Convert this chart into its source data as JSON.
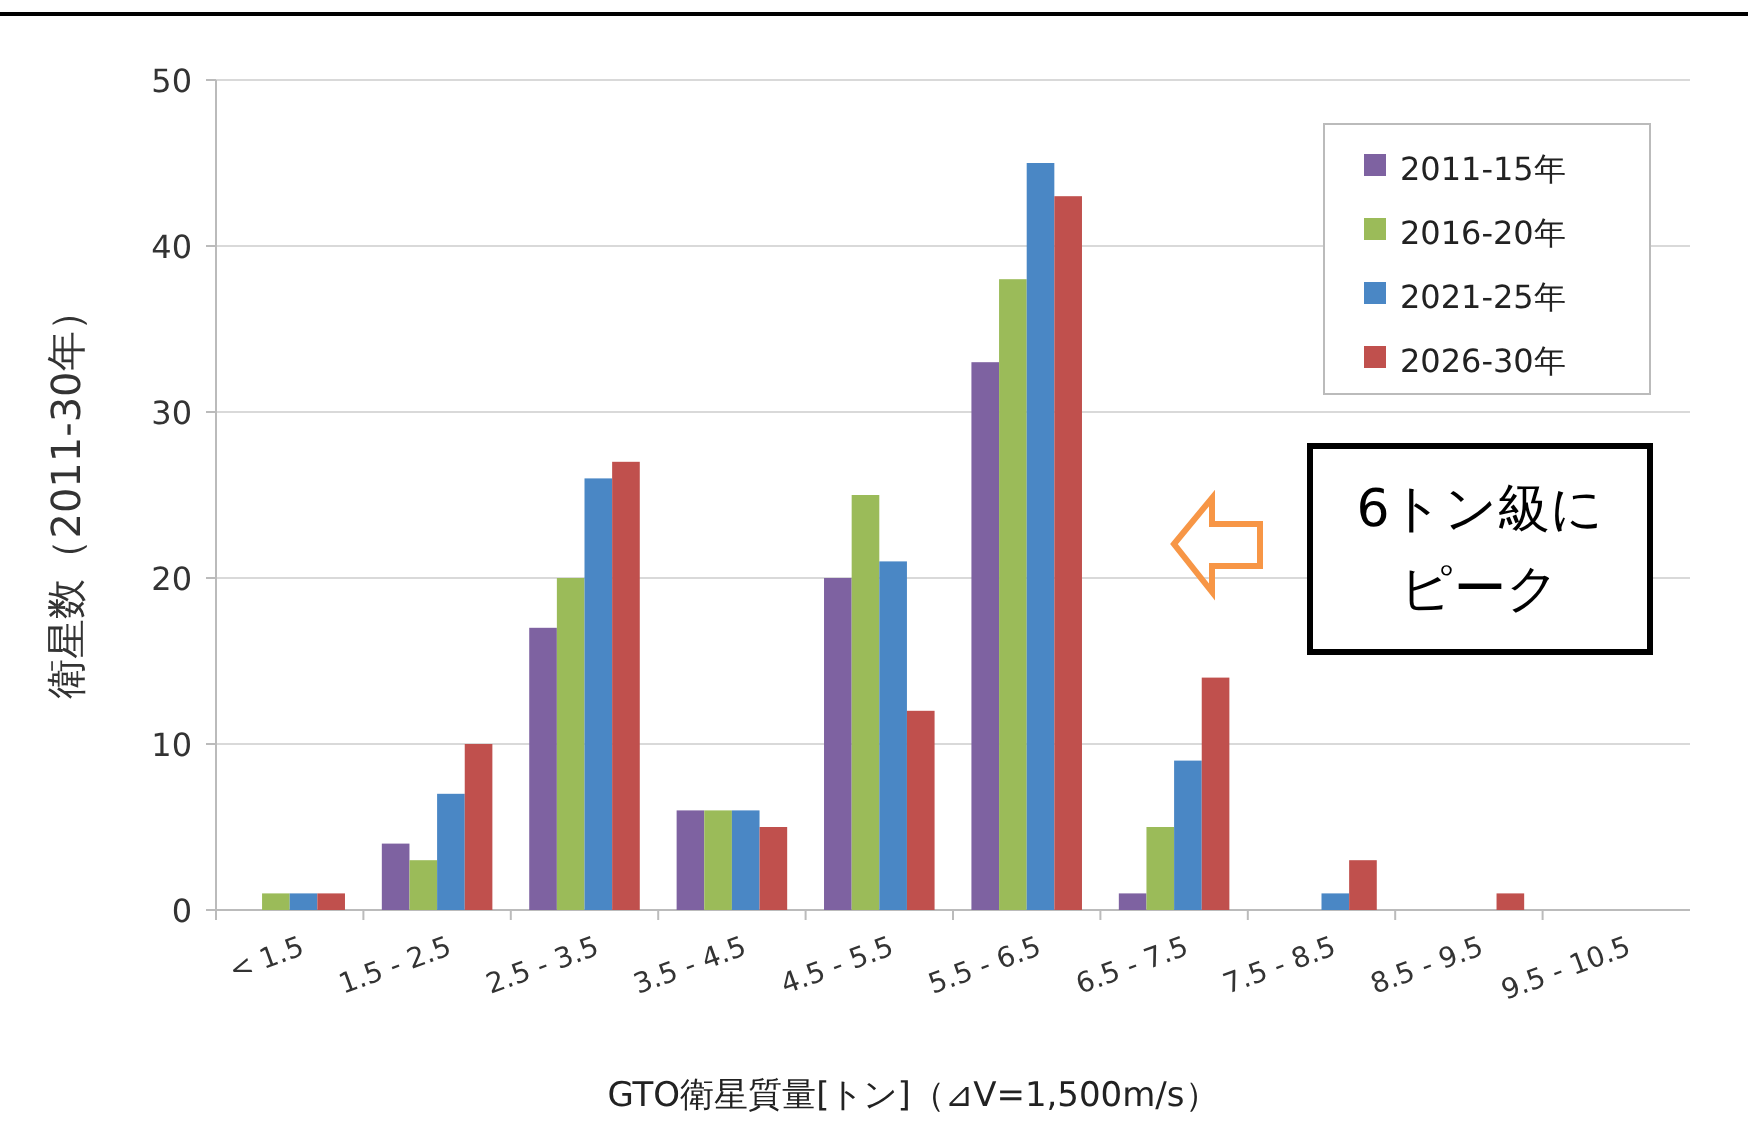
{
  "chart_data": {
    "type": "bar",
    "ylabel": "衛星数（2011-30年）",
    "xlabel": "GTO衛星質量[トン]（⊿V=1,500m/s）",
    "categories": [
      "< 1.5",
      "1.5 - 2.5",
      "2.5 - 3.5",
      "3.5 - 4.5",
      "4.5 - 5.5",
      "5.5 - 6.5",
      "6.5 - 7.5",
      "7.5 - 8.5",
      "8.5 - 9.5",
      "9.5 - 10.5"
    ],
    "series": [
      {
        "name": "2011-15年",
        "color": "#7e62a1",
        "values": [
          0,
          4,
          17,
          6,
          20,
          33,
          1,
          0,
          0,
          0
        ]
      },
      {
        "name": "2016-20年",
        "color": "#9bbb59",
        "values": [
          1,
          3,
          20,
          6,
          25,
          38,
          5,
          0,
          0,
          0
        ]
      },
      {
        "name": "2021-25年",
        "color": "#4a87c5",
        "values": [
          1,
          7,
          26,
          6,
          21,
          45,
          9,
          1,
          0,
          0
        ]
      },
      {
        "name": "2026-30年",
        "color": "#c0504d",
        "values": [
          1,
          10,
          27,
          5,
          12,
          43,
          14,
          3,
          1,
          0
        ]
      }
    ],
    "ylim": [
      0,
      50
    ],
    "yticks": [
      0,
      10,
      20,
      30,
      40,
      50
    ],
    "grid": "y",
    "legend": "top right",
    "annotations": [
      "6トン級にピーク"
    ]
  }
}
